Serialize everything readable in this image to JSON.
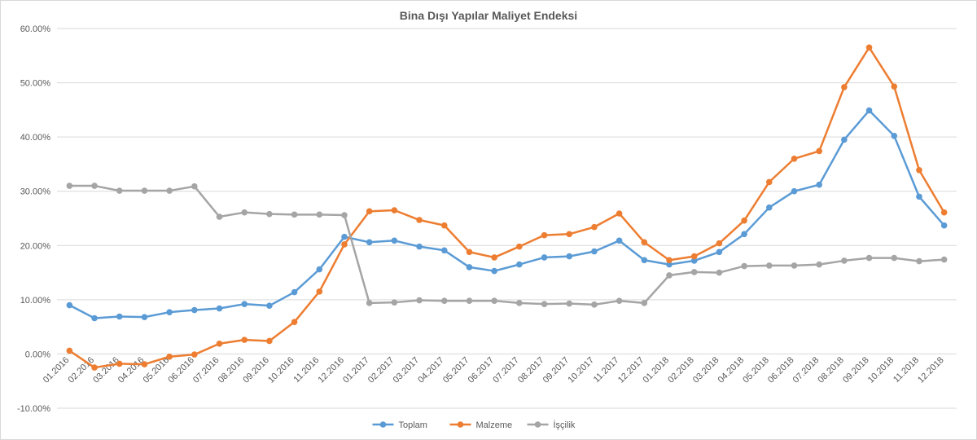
{
  "chart_data": {
    "type": "line",
    "title": "Bina Dışı Yapılar Maliyet Endeksi",
    "xlabel": "",
    "ylabel": "",
    "ylim": [
      -10,
      60
    ],
    "yticks": [
      -10,
      0,
      10,
      20,
      30,
      40,
      50,
      60
    ],
    "ytick_labels": [
      "-10.00%",
      "0.00%",
      "10.00%",
      "20.00%",
      "30.00%",
      "40.00%",
      "50.00%",
      "60.00%"
    ],
    "grid": true,
    "legend_position": "bottom",
    "categories": [
      "01.2016",
      "02.2016",
      "03.2016",
      "04.2016",
      "05.2016",
      "06.2016",
      "07.2016",
      "08.2016",
      "09.2016",
      "10.2016",
      "11.2016",
      "12.2016",
      "01.2017",
      "02.2017",
      "03.2017",
      "04.2017",
      "05.2017",
      "06.2017",
      "07.2017",
      "08.2017",
      "09.2017",
      "10.2017",
      "11.2017",
      "12.2017",
      "01.2018",
      "02.2018",
      "03.2018",
      "04.2018",
      "05.2018",
      "06.2018",
      "07.2018",
      "08.2018",
      "09.2018",
      "10.2018",
      "11.2018",
      "12.2018"
    ],
    "series": [
      {
        "name": "Toplam",
        "color": "#5b9bd5",
        "values": [
          9.0,
          6.6,
          6.9,
          6.8,
          7.7,
          8.1,
          8.4,
          9.2,
          8.9,
          11.4,
          15.6,
          21.6,
          20.6,
          20.9,
          19.8,
          19.1,
          16.0,
          15.3,
          16.5,
          17.8,
          18.0,
          18.9,
          20.9,
          17.3,
          16.5,
          17.2,
          18.8,
          22.1,
          27.0,
          30.0,
          31.2,
          39.5,
          44.9,
          40.2,
          29.0,
          23.7
        ]
      },
      {
        "name": "Malzeme",
        "color": "#ed7d31",
        "values": [
          0.6,
          -2.5,
          -1.8,
          -1.9,
          -0.5,
          -0.1,
          1.9,
          2.6,
          2.4,
          5.9,
          11.5,
          20.2,
          26.3,
          26.5,
          24.7,
          23.7,
          18.8,
          17.8,
          19.8,
          21.9,
          22.1,
          23.4,
          25.9,
          20.6,
          17.3,
          18.0,
          20.4,
          24.6,
          31.7,
          36.0,
          37.4,
          49.2,
          56.5,
          49.3,
          33.9,
          26.1
        ]
      },
      {
        "name": "İşçilik",
        "color": "#a5a5a5",
        "values": [
          31.0,
          31.0,
          30.1,
          30.1,
          30.1,
          30.9,
          25.3,
          26.1,
          25.8,
          25.7,
          25.7,
          25.6,
          9.4,
          9.5,
          9.9,
          9.8,
          9.8,
          9.8,
          9.4,
          9.2,
          9.3,
          9.1,
          9.8,
          9.4,
          14.5,
          15.1,
          15.0,
          16.2,
          16.3,
          16.3,
          16.5,
          17.2,
          17.7,
          17.7,
          17.1,
          17.4
        ]
      }
    ]
  }
}
